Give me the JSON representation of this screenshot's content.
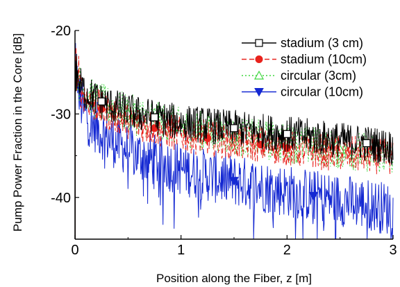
{
  "chart_data": {
    "type": "line",
    "title": "",
    "xlabel": "Position along the Fiber, z [m]",
    "ylabel": "Pump Power Fraction in the Core [dB]",
    "xlim": [
      0,
      3
    ],
    "ylim": [
      -45,
      -20
    ],
    "xticks": [
      0,
      1,
      2,
      3
    ],
    "xtick_labels": [
      "0",
      "1",
      "2",
      "3"
    ],
    "yticks": [
      -20,
      -30,
      -40
    ],
    "ytick_labels": [
      "-20",
      "-30",
      "-40"
    ],
    "grid": false,
    "legend_position": "top-right",
    "series": [
      {
        "name": "stadium (3 cm)",
        "color": "#000000",
        "line_style": "solid",
        "marker": "open-square",
        "marker_x": [
          0.25,
          0.75,
          1.5,
          2.0,
          2.75
        ],
        "x": [
          0.0,
          0.02,
          0.05,
          0.1,
          0.15,
          0.2,
          0.25,
          0.3,
          0.4,
          0.5,
          0.6,
          0.75,
          0.9,
          1.0,
          1.2,
          1.4,
          1.5,
          1.7,
          1.9,
          2.0,
          2.2,
          2.4,
          2.6,
          2.75,
          2.9,
          3.0
        ],
        "values": [
          -24.5,
          -25.5,
          -26.5,
          -27.5,
          -27.8,
          -28.2,
          -28.5,
          -28.8,
          -29.3,
          -29.7,
          -30.0,
          -30.4,
          -30.8,
          -31.0,
          -31.3,
          -31.6,
          -31.7,
          -32.0,
          -32.3,
          -32.4,
          -32.7,
          -33.0,
          -33.3,
          -33.5,
          -33.8,
          -34.0
        ]
      },
      {
        "name": "stadium (10cm)",
        "color": "#e8221c",
        "line_style": "dashed",
        "marker": "filled-circle",
        "marker_x": [
          0.25,
          0.75,
          1.25,
          1.75,
          2.0
        ],
        "x": [
          0.0,
          0.02,
          0.05,
          0.1,
          0.15,
          0.2,
          0.25,
          0.3,
          0.4,
          0.5,
          0.6,
          0.75,
          0.9,
          1.0,
          1.2,
          1.4,
          1.5,
          1.7,
          1.9,
          2.0,
          2.2,
          2.4,
          2.6,
          2.75,
          2.9,
          3.0
        ],
        "values": [
          -24.8,
          -26.0,
          -27.0,
          -28.0,
          -28.6,
          -29.0,
          -29.4,
          -29.8,
          -30.3,
          -30.8,
          -31.2,
          -31.7,
          -32.1,
          -32.4,
          -32.8,
          -33.2,
          -33.3,
          -33.6,
          -33.9,
          -34.1,
          -34.4,
          -34.6,
          -34.8,
          -34.9,
          -35.1,
          -35.2
        ]
      },
      {
        "name": "circular (3cm)",
        "color": "#3fd63f",
        "line_style": "dotted",
        "marker": "open-triangle-up",
        "marker_x": [
          0.5,
          1.0,
          1.5,
          2.5
        ],
        "x": [
          0.0,
          0.02,
          0.05,
          0.1,
          0.15,
          0.2,
          0.25,
          0.3,
          0.4,
          0.5,
          0.6,
          0.75,
          0.9,
          1.0,
          1.2,
          1.4,
          1.5,
          1.7,
          1.9,
          2.0,
          2.2,
          2.4,
          2.6,
          2.75,
          2.9,
          3.0
        ],
        "values": [
          -24.6,
          -25.6,
          -26.6,
          -27.6,
          -28.0,
          -28.4,
          -28.7,
          -29.0,
          -29.5,
          -29.9,
          -30.3,
          -30.8,
          -31.3,
          -31.6,
          -32.0,
          -32.4,
          -32.6,
          -33.0,
          -33.3,
          -33.5,
          -33.8,
          -34.1,
          -34.4,
          -34.6,
          -34.9,
          -35.1
        ]
      },
      {
        "name": "circular (10cm)",
        "color": "#1428d2",
        "line_style": "solid",
        "marker": "filled-triangle-down",
        "marker_x": [
          1.5,
          2.25
        ],
        "x": [
          0.0,
          0.02,
          0.05,
          0.1,
          0.15,
          0.2,
          0.25,
          0.3,
          0.4,
          0.5,
          0.6,
          0.75,
          0.9,
          1.0,
          1.2,
          1.4,
          1.5,
          1.7,
          1.9,
          2.0,
          2.2,
          2.4,
          2.6,
          2.75,
          2.9,
          3.0
        ],
        "values": [
          -25.0,
          -27.0,
          -28.6,
          -30.2,
          -31.0,
          -31.6,
          -32.2,
          -32.8,
          -33.6,
          -34.3,
          -34.9,
          -35.6,
          -36.2,
          -36.6,
          -37.2,
          -37.8,
          -38.0,
          -38.5,
          -39.0,
          -39.2,
          -39.7,
          -40.1,
          -40.5,
          -40.8,
          -41.2,
          -41.5
        ]
      }
    ]
  }
}
